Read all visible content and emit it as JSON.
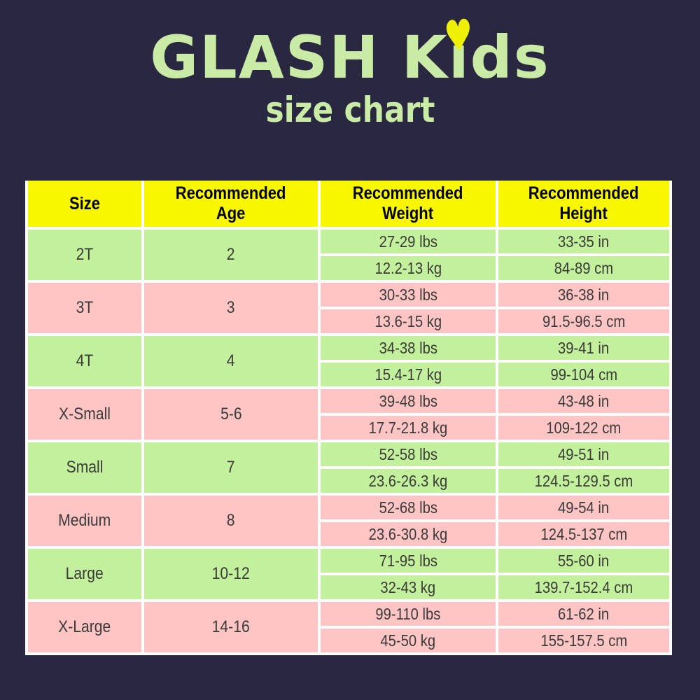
{
  "page": {
    "background_color": "#2a2840"
  },
  "title": {
    "full": "GLASH Kids",
    "part1": "GLASH K",
    "i_letter": "i",
    "part2": "ds",
    "subtitle": "size chart",
    "text_color": "#c9eba6",
    "heart_color": "#eef104"
  },
  "icons": {
    "heart": "♥"
  },
  "table": {
    "colors": {
      "header_bg": "#f9f700",
      "row_green": "#c3f09c",
      "row_pink": "#ffc5c5",
      "divider": "#ffffff",
      "text": "#3a3a38"
    },
    "headers": [
      {
        "label": "Size"
      },
      {
        "label": "Recommended\nAge"
      },
      {
        "label": "Recommended\nWeight"
      },
      {
        "label": "Recommended\nHeight"
      }
    ],
    "rows": [
      {
        "size": "2T",
        "age": "2",
        "weight_lbs": "27-29 lbs",
        "weight_kg": "12.2-13 kg",
        "height_in": "33-35 in",
        "height_cm": "84-89 cm"
      },
      {
        "size": "3T",
        "age": "3",
        "weight_lbs": "30-33 lbs",
        "weight_kg": "13.6-15 kg",
        "height_in": "36-38 in",
        "height_cm": "91.5-96.5 cm"
      },
      {
        "size": "4T",
        "age": "4",
        "weight_lbs": "34-38 lbs",
        "weight_kg": "15.4-17 kg",
        "height_in": "39-41 in",
        "height_cm": "99-104 cm"
      },
      {
        "size": "X-Small",
        "age": "5-6",
        "weight_lbs": "39-48 lbs",
        "weight_kg": "17.7-21.8 kg",
        "height_in": "43-48 in",
        "height_cm": "109-122 cm"
      },
      {
        "size": "Small",
        "age": "7",
        "weight_lbs": "52-58 lbs",
        "weight_kg": "23.6-26.3 kg",
        "height_in": "49-51 in",
        "height_cm": "124.5-129.5 cm"
      },
      {
        "size": "Medium",
        "age": "8",
        "weight_lbs": "52-68 lbs",
        "weight_kg": "23.6-30.8 kg",
        "height_in": "49-54 in",
        "height_cm": "124.5-137 cm"
      },
      {
        "size": "Large",
        "age": "10-12",
        "weight_lbs": "71-95 lbs",
        "weight_kg": "32-43 kg",
        "height_in": "55-60 in",
        "height_cm": "139.7-152.4 cm"
      },
      {
        "size": "X-Large",
        "age": "14-16",
        "weight_lbs": "99-110 lbs",
        "weight_kg": "45-50 kg",
        "height_in": "61-62 in",
        "height_cm": "155-157.5 cm"
      }
    ]
  },
  "chart_data": {
    "type": "table",
    "title": "GLASH Kids size chart",
    "columns": [
      "Size",
      "Recommended Age",
      "Recommended Weight",
      "Recommended Height"
    ],
    "rows": [
      [
        "2T",
        "2",
        "27-29 lbs / 12.2-13 kg",
        "33-35 in / 84-89 cm"
      ],
      [
        "3T",
        "3",
        "30-33 lbs / 13.6-15 kg",
        "36-38 in / 91.5-96.5 cm"
      ],
      [
        "4T",
        "4",
        "34-38 lbs / 15.4-17 kg",
        "39-41 in / 99-104 cm"
      ],
      [
        "X-Small",
        "5-6",
        "39-48 lbs / 17.7-21.8 kg",
        "43-48 in / 109-122 cm"
      ],
      [
        "Small",
        "7",
        "52-58 lbs / 23.6-26.3 kg",
        "49-51 in / 124.5-129.5 cm"
      ],
      [
        "Medium",
        "8",
        "52-68 lbs / 23.6-30.8 kg",
        "49-54 in / 124.5-137 cm"
      ],
      [
        "Large",
        "10-12",
        "71-95 lbs / 32-43 kg",
        "55-60 in / 139.7-152.4 cm"
      ],
      [
        "X-Large",
        "14-16",
        "99-110 lbs / 45-50 kg",
        "61-62 in / 155-157.5 cm"
      ]
    ]
  }
}
